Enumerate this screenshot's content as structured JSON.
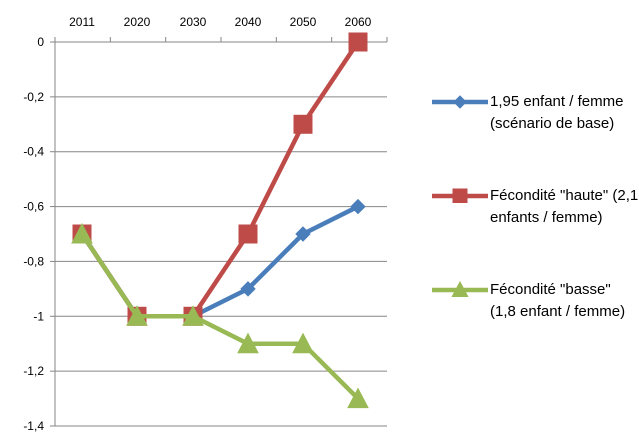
{
  "chart_data": {
    "type": "line",
    "x": [
      "2011",
      "2020",
      "2030",
      "2040",
      "2050",
      "2060"
    ],
    "ylim": [
      -1.4,
      0
    ],
    "yticks": [
      "0",
      "-0,2",
      "-0,4",
      "-0,6",
      "-0,8",
      "-1",
      "-1,2",
      "-1,4"
    ],
    "x_axis_position": "top",
    "grid": "horizontal",
    "legend_position": "right",
    "series": [
      {
        "name": "1,95 enfant / femme (scénario de base)",
        "color": "#4a7ebb",
        "marker": "diamond",
        "values": [
          -0.7,
          -1.0,
          -1.0,
          -0.9,
          -0.7,
          -0.6
        ]
      },
      {
        "name": "Fécondité \"haute\" (2,1 enfants / femme)",
        "color": "#be4b48",
        "marker": "square",
        "values": [
          -0.7,
          -1.0,
          -1.0,
          -0.7,
          -0.3,
          0.0
        ]
      },
      {
        "name": "Fécondité \"basse\" (1,8 enfant / femme)",
        "color": "#98b954",
        "marker": "triangle",
        "values": [
          -0.7,
          -1.0,
          -1.0,
          -1.1,
          -1.1,
          -1.3
        ]
      }
    ]
  }
}
